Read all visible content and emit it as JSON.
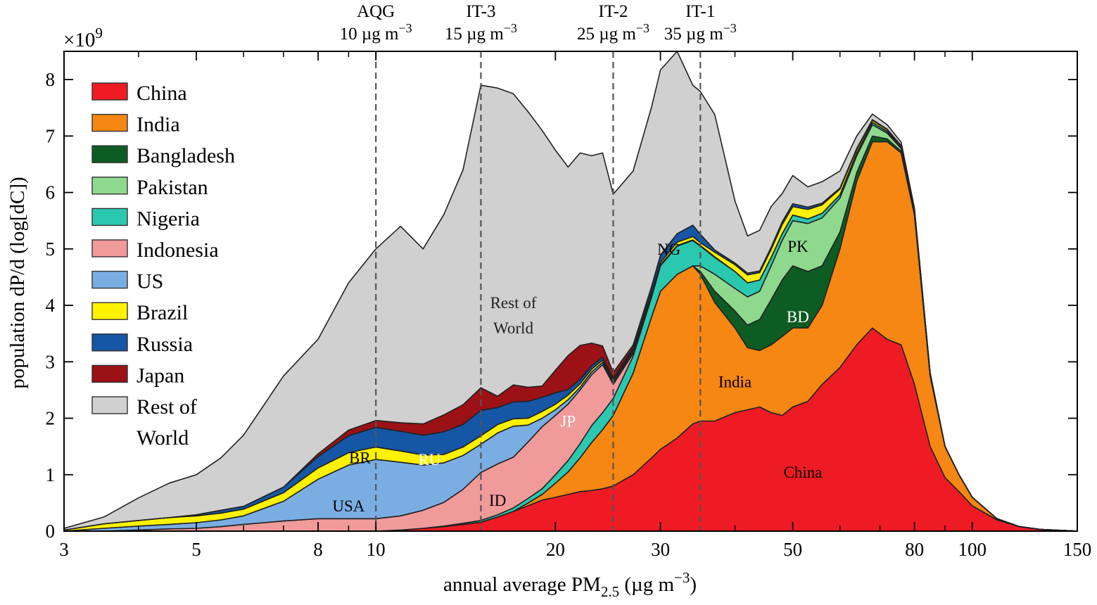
{
  "chart_data": {
    "type": "area",
    "stacked": true,
    "xscale": "log",
    "xlim": [
      3,
      150
    ],
    "ylim": [
      0,
      8.5
    ],
    "y_multiplier": "×10",
    "y_multiplier_exp": "9",
    "xlabel_main": "annual average PM",
    "xlabel_sub": "2.5",
    "xlabel_units": " (µg m",
    "xlabel_units_exp": "−3",
    "xlabel_units_close": ")",
    "ylabel": "population dP/d (log[dC])",
    "x_ticks": [
      3,
      5,
      8,
      10,
      20,
      30,
      50,
      80,
      100,
      150
    ],
    "y_ticks": [
      0,
      1,
      2,
      3,
      4,
      5,
      6,
      7,
      8
    ],
    "legend_position": "top-left",
    "x": [
      3.0,
      3.5,
      4.0,
      4.5,
      5.0,
      5.5,
      6.0,
      7.0,
      8.0,
      9.0,
      10.0,
      11.0,
      12.0,
      13.0,
      14.0,
      15.0,
      16.0,
      17.0,
      18.0,
      19.0,
      20.0,
      21.0,
      22.0,
      23.0,
      24.0,
      25.0,
      27.0,
      29.0,
      30.0,
      32.0,
      34.0,
      35.0,
      37.0,
      40.0,
      42.0,
      44.0,
      46.0,
      48.0,
      50.0,
      53.0,
      56.0,
      60.0,
      64.0,
      68.0,
      72.0,
      76.0,
      80.0,
      85.0,
      90.0,
      95.0,
      100.0,
      110.0,
      120.0,
      130.0,
      150.0
    ],
    "series": [
      {
        "name": "China",
        "color": "#ef1b24",
        "values": [
          0.0,
          0.0,
          0.0,
          0.0,
          0.0,
          0.0,
          0.0,
          0.0,
          0.0,
          0.0,
          0.0,
          0.02,
          0.05,
          0.08,
          0.12,
          0.16,
          0.25,
          0.35,
          0.45,
          0.55,
          0.6,
          0.65,
          0.7,
          0.72,
          0.75,
          0.8,
          1.0,
          1.3,
          1.45,
          1.65,
          1.9,
          1.95,
          1.95,
          2.1,
          2.15,
          2.2,
          2.1,
          2.05,
          2.2,
          2.3,
          2.6,
          2.9,
          3.3,
          3.6,
          3.4,
          3.3,
          2.6,
          1.5,
          0.95,
          0.7,
          0.45,
          0.2,
          0.08,
          0.03,
          0.0
        ]
      },
      {
        "name": "India",
        "color": "#f68712",
        "values": [
          0.0,
          0.0,
          0.0,
          0.0,
          0.0,
          0.0,
          0.0,
          0.0,
          0.0,
          0.0,
          0.0,
          0.0,
          0.0,
          0.0,
          0.0,
          0.0,
          0.0,
          0.0,
          0.05,
          0.1,
          0.25,
          0.4,
          0.6,
          0.85,
          1.05,
          1.25,
          1.8,
          2.5,
          2.8,
          2.9,
          2.8,
          2.6,
          2.1,
          1.5,
          1.1,
          1.0,
          1.2,
          1.4,
          1.4,
          1.3,
          1.4,
          2.1,
          2.9,
          3.3,
          3.5,
          3.4,
          3.0,
          1.25,
          0.55,
          0.3,
          0.15,
          0.02,
          0.0,
          0.0,
          0.0
        ]
      },
      {
        "name": "Bangladesh",
        "color": "#0d5c23",
        "values": [
          0.0,
          0.0,
          0.0,
          0.0,
          0.0,
          0.0,
          0.0,
          0.0,
          0.0,
          0.0,
          0.0,
          0.0,
          0.0,
          0.0,
          0.0,
          0.0,
          0.0,
          0.0,
          0.0,
          0.0,
          0.0,
          0.0,
          0.0,
          0.0,
          0.0,
          0.0,
          0.0,
          0.0,
          0.0,
          0.0,
          0.0,
          0.05,
          0.2,
          0.3,
          0.4,
          0.55,
          0.8,
          1.0,
          1.1,
          1.0,
          0.7,
          0.3,
          0.15,
          0.1,
          0.05,
          0.03,
          0.02,
          0.01,
          0.0,
          0.0,
          0.0,
          0.0,
          0.0,
          0.0,
          0.0
        ]
      },
      {
        "name": "Pakistan",
        "color": "#8fd98f",
        "values": [
          0.0,
          0.0,
          0.0,
          0.0,
          0.0,
          0.0,
          0.0,
          0.0,
          0.0,
          0.0,
          0.0,
          0.0,
          0.0,
          0.0,
          0.0,
          0.0,
          0.0,
          0.0,
          0.0,
          0.0,
          0.0,
          0.0,
          0.0,
          0.0,
          0.0,
          0.0,
          0.0,
          0.0,
          0.0,
          0.0,
          0.0,
          0.1,
          0.3,
          0.4,
          0.5,
          0.5,
          0.6,
          0.7,
          0.8,
          0.85,
          0.85,
          0.6,
          0.3,
          0.2,
          0.1,
          0.05,
          0.03,
          0.01,
          0.0,
          0.0,
          0.0,
          0.0,
          0.0,
          0.0,
          0.0
        ]
      },
      {
        "name": "Nigeria",
        "color": "#2bc8b0",
        "values": [
          0.0,
          0.0,
          0.0,
          0.0,
          0.0,
          0.0,
          0.0,
          0.0,
          0.0,
          0.0,
          0.0,
          0.0,
          0.0,
          0.01,
          0.02,
          0.03,
          0.04,
          0.06,
          0.08,
          0.1,
          0.15,
          0.2,
          0.25,
          0.3,
          0.3,
          0.3,
          0.3,
          0.35,
          0.45,
          0.5,
          0.45,
          0.35,
          0.3,
          0.3,
          0.25,
          0.2,
          0.15,
          0.12,
          0.1,
          0.08,
          0.08,
          0.06,
          0.05,
          0.04,
          0.03,
          0.02,
          0.02,
          0.01,
          0.0,
          0.0,
          0.0,
          0.0,
          0.0,
          0.0,
          0.0
        ]
      },
      {
        "name": "Indonesia",
        "color": "#f09a9a",
        "values": [
          0.0,
          0.0,
          0.02,
          0.04,
          0.05,
          0.08,
          0.12,
          0.18,
          0.22,
          0.22,
          0.22,
          0.25,
          0.32,
          0.42,
          0.6,
          0.85,
          0.9,
          0.9,
          1.0,
          1.1,
          1.05,
          1.0,
          0.95,
          0.9,
          0.85,
          0.25,
          0.05,
          0.02,
          0.0,
          0.0,
          0.0,
          0.0,
          0.0,
          0.0,
          0.0,
          0.0,
          0.0,
          0.0,
          0.0,
          0.0,
          0.0,
          0.0,
          0.0,
          0.0,
          0.0,
          0.0,
          0.0,
          0.0,
          0.0,
          0.0,
          0.0,
          0.0,
          0.0,
          0.0,
          0.0
        ]
      },
      {
        "name": "US",
        "color": "#7aaee3",
        "values": [
          0.0,
          0.05,
          0.07,
          0.08,
          0.1,
          0.12,
          0.15,
          0.35,
          0.7,
          0.95,
          1.05,
          0.95,
          0.8,
          0.7,
          0.6,
          0.5,
          0.55,
          0.55,
          0.3,
          0.15,
          0.1,
          0.08,
          0.05,
          0.05,
          0.04,
          0.04,
          0.03,
          0.02,
          0.02,
          0.01,
          0.01,
          0.01,
          0.01,
          0.0,
          0.0,
          0.0,
          0.0,
          0.0,
          0.0,
          0.0,
          0.0,
          0.0,
          0.0,
          0.0,
          0.0,
          0.0,
          0.0,
          0.0,
          0.0,
          0.0,
          0.0,
          0.0,
          0.0,
          0.0,
          0.0
        ]
      },
      {
        "name": "Brazil",
        "color": "#fff200",
        "values": [
          0.02,
          0.08,
          0.1,
          0.12,
          0.12,
          0.12,
          0.12,
          0.15,
          0.2,
          0.22,
          0.22,
          0.2,
          0.18,
          0.15,
          0.15,
          0.15,
          0.15,
          0.13,
          0.12,
          0.12,
          0.1,
          0.08,
          0.06,
          0.05,
          0.04,
          0.03,
          0.03,
          0.03,
          0.04,
          0.06,
          0.06,
          0.05,
          0.08,
          0.12,
          0.14,
          0.13,
          0.14,
          0.16,
          0.15,
          0.17,
          0.15,
          0.1,
          0.06,
          0.04,
          0.03,
          0.02,
          0.02,
          0.01,
          0.0,
          0.0,
          0.0,
          0.0,
          0.0,
          0.0,
          0.0
        ]
      },
      {
        "name": "Russia",
        "color": "#1556a6",
        "values": [
          0.0,
          0.0,
          0.0,
          0.0,
          0.02,
          0.05,
          0.05,
          0.1,
          0.2,
          0.3,
          0.35,
          0.35,
          0.35,
          0.4,
          0.4,
          0.45,
          0.3,
          0.3,
          0.3,
          0.25,
          0.2,
          0.1,
          0.08,
          0.06,
          0.05,
          0.04,
          0.04,
          0.1,
          0.12,
          0.15,
          0.2,
          0.15,
          0.04,
          0.03,
          0.03,
          0.03,
          0.04,
          0.05,
          0.05,
          0.04,
          0.03,
          0.02,
          0.02,
          0.01,
          0.01,
          0.01,
          0.0,
          0.0,
          0.0,
          0.0,
          0.0,
          0.0,
          0.0,
          0.0,
          0.0
        ]
      },
      {
        "name": "Japan",
        "color": "#9b1115",
        "values": [
          0.0,
          0.0,
          0.0,
          0.0,
          0.0,
          0.0,
          0.0,
          0.0,
          0.05,
          0.1,
          0.12,
          0.15,
          0.2,
          0.3,
          0.35,
          0.4,
          0.2,
          0.3,
          0.25,
          0.2,
          0.4,
          0.6,
          0.6,
          0.4,
          0.2,
          0.1,
          0.05,
          0.02,
          0.01,
          0.0,
          0.0,
          0.0,
          0.0,
          0.0,
          0.0,
          0.0,
          0.0,
          0.0,
          0.0,
          0.0,
          0.0,
          0.0,
          0.0,
          0.0,
          0.0,
          0.0,
          0.0,
          0.0,
          0.0,
          0.0,
          0.0,
          0.0,
          0.0,
          0.0,
          0.0
        ]
      },
      {
        "name": "Rest of World",
        "color": "#d0d0d0",
        "values": [
          0.03,
          0.12,
          0.4,
          0.61,
          0.71,
          0.93,
          1.26,
          1.97,
          2.03,
          2.61,
          3.04,
          3.48,
          3.1,
          3.55,
          4.16,
          5.36,
          5.46,
          5.16,
          4.88,
          4.53,
          3.9,
          3.34,
          3.41,
          3.32,
          3.42,
          3.16,
          3.08,
          3.18,
          3.28,
          3.23,
          2.48,
          2.53,
          2.4,
          1.1,
          0.66,
          0.72,
          0.72,
          0.5,
          0.5,
          0.36,
          0.38,
          0.3,
          0.22,
          0.1,
          0.08,
          0.06,
          0.03,
          0.02,
          0.0,
          0.0,
          0.0,
          0.0,
          0.0,
          0.0,
          0.0
        ]
      }
    ],
    "guidelines": [
      {
        "name": "AQG",
        "value_label": "10 µg m",
        "exp": "−3",
        "x": 10
      },
      {
        "name": "IT-3",
        "value_label": "15 µg m",
        "exp": "−3",
        "x": 15
      },
      {
        "name": "IT-2",
        "value_label": "25 µg m",
        "exp": "−3",
        "x": 25
      },
      {
        "name": "IT-1",
        "value_label": "35 µg m",
        "exp": "−3",
        "x": 35
      }
    ],
    "region_labels": [
      {
        "text": "Rest of",
        "x": 17.0,
        "y": 4.05,
        "color": "#222222"
      },
      {
        "text": "World",
        "x": 17.0,
        "y": 3.6,
        "color": "#222222"
      },
      {
        "text": "NG",
        "x": 31.0,
        "y": 5.0,
        "color": "#000000"
      },
      {
        "text": "PK",
        "x": 51.0,
        "y": 5.05,
        "color": "#000000"
      },
      {
        "text": "BD",
        "x": 51.0,
        "y": 3.8,
        "color": "#ffffff"
      },
      {
        "text": "India",
        "x": 40.0,
        "y": 2.65,
        "color": "#000000"
      },
      {
        "text": "China",
        "x": 52.0,
        "y": 1.05,
        "color": "#000000"
      },
      {
        "text": "JP",
        "x": 21.0,
        "y": 1.95,
        "color": "#ffffff"
      },
      {
        "text": "BR",
        "x": 9.4,
        "y": 1.3,
        "color": "#000000"
      },
      {
        "text": "RU",
        "x": 12.3,
        "y": 1.27,
        "color": "#ffffff"
      },
      {
        "text": "USA",
        "x": 9.0,
        "y": 0.45,
        "color": "#000000"
      },
      {
        "text": "ID",
        "x": 16.0,
        "y": 0.55,
        "color": "#000000"
      }
    ]
  }
}
